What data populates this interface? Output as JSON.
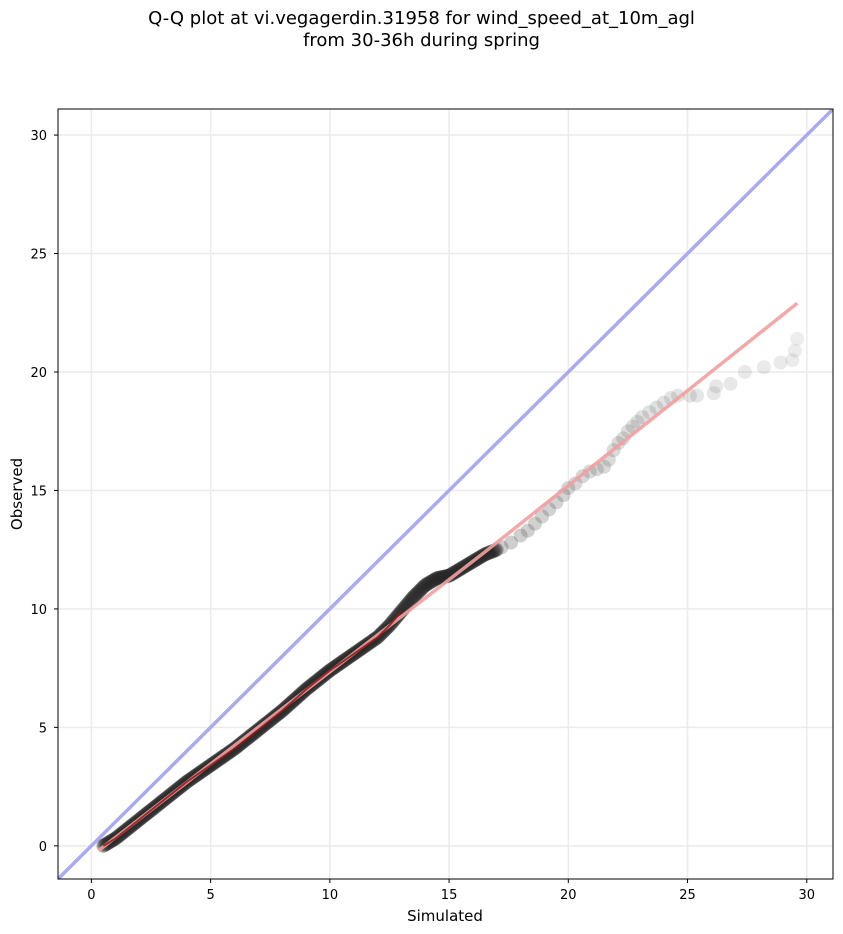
{
  "chart_data": {
    "type": "scatter",
    "title_line1": "Q-Q plot at vi.vegagerdin.31958 for wind_speed_at_10m_agl",
    "title_line2": "from 30-36h during spring",
    "xlabel": "Simulated",
    "ylabel": "Observed",
    "xlim": [
      -1.4,
      31.1
    ],
    "ylim": [
      -1.4,
      31.1
    ],
    "xticks": [
      0,
      5,
      10,
      15,
      20,
      25,
      30
    ],
    "yticks": [
      0,
      5,
      10,
      15,
      20,
      25,
      30
    ],
    "grid": true,
    "reference_line": {
      "name": "1:1",
      "color": "#aaaaee",
      "x": [
        -1.4,
        31.1
      ],
      "y": [
        -1.4,
        31.1
      ]
    },
    "fit_line": {
      "color": "#f0a0a0",
      "x": [
        0.3,
        12.9,
        16.5,
        29.6
      ],
      "y": [
        -0.2,
        9.6,
        12.4,
        22.9
      ]
    },
    "quantile_curve": {
      "color": "#8b1a1a",
      "x": [
        0.5,
        1.0,
        2.0,
        3.0,
        4.0,
        5.0,
        6.0,
        7.0,
        8.0,
        9.0,
        10.0,
        11.0,
        12.0,
        12.5,
        13.0,
        13.5,
        14.0,
        14.5,
        15.0,
        15.5,
        16.0,
        16.5,
        17.0
      ],
      "y": [
        0.0,
        0.3,
        1.1,
        1.9,
        2.7,
        3.4,
        4.1,
        4.9,
        5.7,
        6.6,
        7.4,
        8.1,
        8.8,
        9.3,
        9.9,
        10.5,
        11.0,
        11.3,
        11.4,
        11.7,
        12.0,
        12.3,
        12.5
      ]
    },
    "tail_points": {
      "x": [
        17.2,
        17.6,
        18.0,
        18.3,
        18.6,
        18.9,
        19.2,
        19.5,
        19.8,
        20.0,
        20.3,
        20.6,
        20.9,
        21.2,
        21.5,
        21.7,
        21.9,
        22.1,
        22.3,
        22.5,
        22.7,
        22.9,
        23.1,
        23.4,
        23.7,
        24.0,
        24.3,
        24.6,
        25.1,
        25.4,
        26.1,
        26.2,
        26.8,
        27.4,
        28.2,
        28.9,
        29.4,
        29.5,
        29.6
      ],
      "y": [
        12.6,
        12.8,
        13.1,
        13.3,
        13.6,
        13.9,
        14.2,
        14.5,
        14.8,
        15.1,
        15.3,
        15.6,
        15.8,
        15.9,
        16.0,
        16.3,
        16.7,
        17.0,
        17.2,
        17.5,
        17.7,
        17.9,
        18.1,
        18.3,
        18.5,
        18.7,
        18.9,
        19.0,
        19.0,
        19.0,
        19.1,
        19.4,
        19.5,
        20.0,
        20.2,
        20.4,
        20.5,
        20.9,
        21.4
      ]
    }
  }
}
